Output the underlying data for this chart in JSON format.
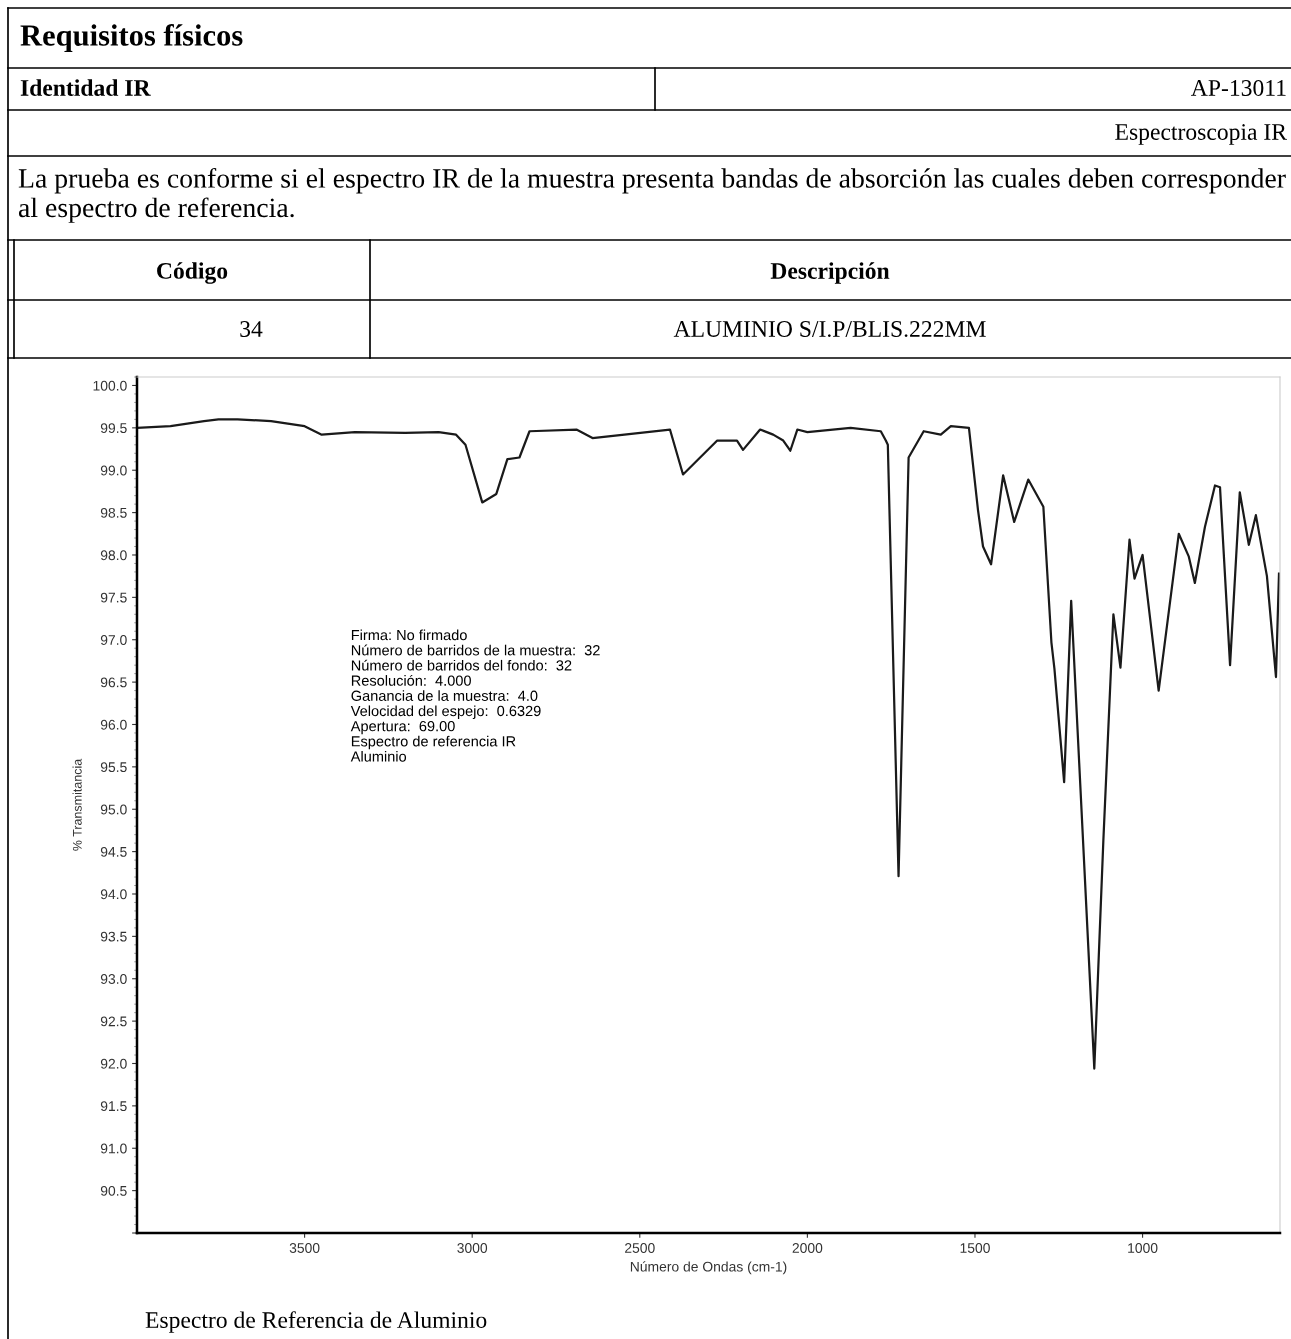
{
  "chart_data": {
    "type": "line",
    "title": "Requisitos físicos",
    "annotations": [
      "Identidad IR",
      "AP-13011",
      "Espectroscopia IR",
      "La prueba es conforme si el espectro IR de la muestra presenta bandas de absorción las cuales deben corresponder al espectro de referencia.",
      "Código",
      "Descripción",
      "34",
      "ALUMINIO S/I.P/BLIS.222MM",
      "Firma: No firmado\nNúmero de barridos de la muestra:  32\nNúmero de barridos del fondo:  32\nResolución:  4.000\nGanancia de la muestra:  4.0\nVelocidad del espejo:  0.6329\nApertura:  69.00\nEspectro de referencia IR\nAluminio",
      "Espectro de Referencia de Aluminio"
    ],
    "xlabel": "Número de Ondas (cm-1)",
    "ylabel": "% Transmitancia",
    "xlim": [
      4000,
      590
    ],
    "ylim": [
      90.0,
      100.1
    ],
    "xticks": [
      3500,
      3000,
      2500,
      2000,
      1500,
      1000
    ],
    "yticks": [
      {
        "value": 90,
        "label": null
      },
      90.5,
      {
        "value": 91,
        "label": "91.0"
      },
      91.5,
      {
        "value": 92,
        "label": "92.0"
      },
      92.5,
      {
        "value": 93,
        "label": "93.0"
      },
      93.5,
      {
        "value": 94,
        "label": "94.0"
      },
      94.5,
      {
        "value": 95,
        "label": "95.0"
      },
      95.5,
      {
        "value": 96,
        "label": "96.0"
      },
      96.5,
      {
        "value": 97,
        "label": "97.0"
      },
      97.5,
      {
        "value": 98,
        "label": "98.0"
      },
      98.5,
      {
        "value": 99,
        "label": "99.0"
      },
      99.5,
      {
        "value": 100,
        "label": "100.0"
      }
    ],
    "grid": false,
    "legend": false,
    "marker": "none",
    "line_style": "solid",
    "series": [
      {
        "color": "#1a1a1a",
        "x": [
          4000,
          3900,
          3800,
          3757,
          3700,
          3600,
          3500,
          3449,
          3350,
          3200,
          3100,
          3048,
          3020,
          2970,
          2928,
          2895,
          2859,
          2829,
          2689,
          2641,
          2410,
          2371,
          2320,
          2269,
          2210,
          2192,
          2141,
          2102,
          2072,
          2051,
          2030,
          2000,
          1871,
          1781,
          1766,
          1760,
          1728,
          1698,
          1653,
          1602,
          1572,
          1518,
          1491,
          1476,
          1452,
          1416,
          1383,
          1341,
          1296,
          1272,
          1263,
          1234,
          1213,
          1144,
          1117,
          1087,
          1066,
          1039,
          1024,
          1000,
          952,
          892,
          862,
          844,
          814,
          784,
          769,
          739,
          710,
          683,
          662,
          629,
          602,
          593
        ],
        "values": [
          99.5,
          99.52,
          99.58,
          99.6,
          99.6,
          99.58,
          99.52,
          99.42,
          99.45,
          99.44,
          99.45,
          99.42,
          99.3,
          98.62,
          98.72,
          99.13,
          99.15,
          99.46,
          99.48,
          99.38,
          99.48,
          98.95,
          99.15,
          99.35,
          99.35,
          99.24,
          99.48,
          99.42,
          99.35,
          99.23,
          99.48,
          99.45,
          99.5,
          99.46,
          99.35,
          99.3,
          94.21,
          99.15,
          99.46,
          99.42,
          99.52,
          99.5,
          98.53,
          98.1,
          97.89,
          98.94,
          98.39,
          98.89,
          98.57,
          96.97,
          96.66,
          95.32,
          97.46,
          91.94,
          94.63,
          97.3,
          96.67,
          98.18,
          97.72,
          98.0,
          96.4,
          98.25,
          97.98,
          97.67,
          98.33,
          98.82,
          98.8,
          96.7,
          98.74,
          98.12,
          98.47,
          97.75,
          96.56,
          97.78
        ]
      }
    ]
  }
}
